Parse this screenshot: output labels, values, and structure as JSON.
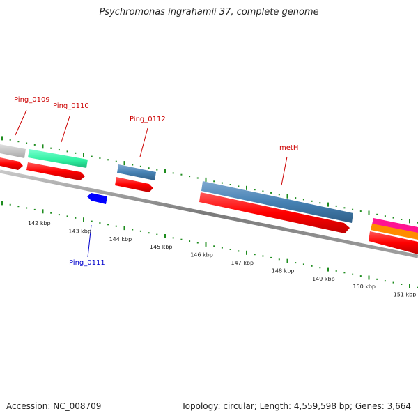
{
  "title": "Psychromonas ingrahamii 37, complete genome",
  "footer": {
    "accession": "Accession: NC_008709",
    "summary": "Topology: circular; Length: 4,559,598 bp; Genes: 3,664"
  },
  "ruler": {
    "labels": [
      "142 kbp",
      "143 kbp",
      "144 kbp",
      "145 kbp",
      "146 kbp",
      "147 kbp",
      "148 kbp",
      "149 kbp",
      "150 kbp",
      "151 kbp"
    ]
  },
  "gene_labels": {
    "ping_0109": "Ping_0109",
    "ping_0110": "Ping_0110",
    "ping_0112": "Ping_0112",
    "meth": "metH",
    "ping_0111": "Ping_0111"
  },
  "colors": {
    "backbone": "#8c8c8c",
    "tick": "#1e8c1e",
    "cds": "#ff0000",
    "gene_forward": "#4682b4",
    "gene_label_forward": "#cc0000",
    "gene_label_reverse": "#0000cc",
    "reverse_gene": "#0000ff",
    "gray_feature": "#c0c0c0",
    "teal_feature": "#2ef0a0",
    "magenta_feature": "#ff1493",
    "orange_feature": "#ff8c00"
  }
}
